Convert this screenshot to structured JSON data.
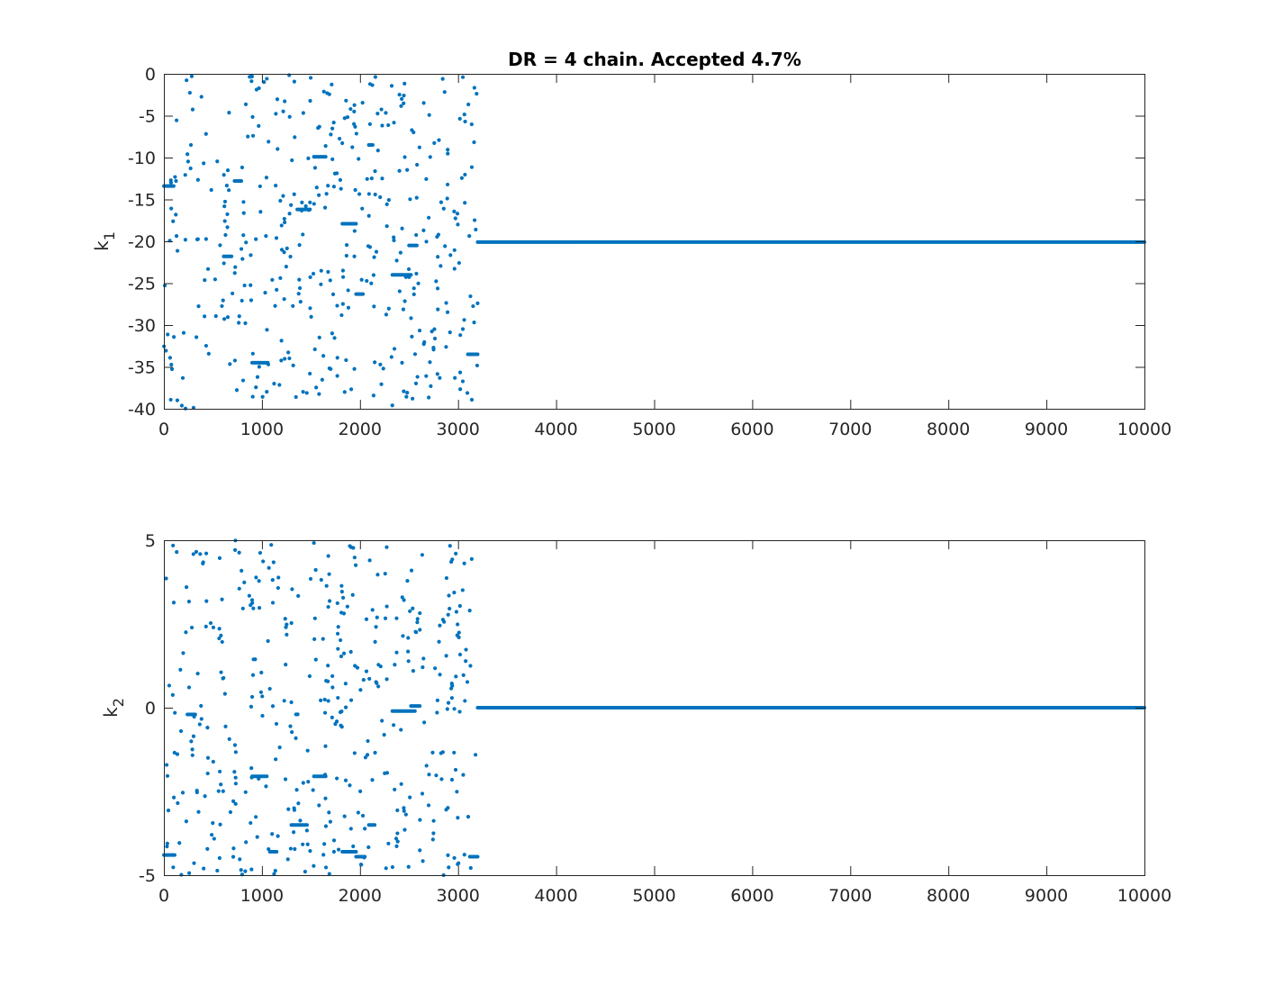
{
  "figure": {
    "title": "DR = 4 chain. Accepted 4.7%"
  },
  "chart_data": [
    {
      "type": "scatter",
      "title": "DR = 4 chain. Accepted 4.7%",
      "ylabel_base": "k",
      "ylabel_sub": "1",
      "xlim": [
        0,
        10000
      ],
      "ylim": [
        -40,
        0
      ],
      "xticks": [
        0,
        1000,
        2000,
        3000,
        4000,
        5000,
        6000,
        7000,
        8000,
        9000,
        10000
      ],
      "yticks": [
        0,
        -5,
        -10,
        -15,
        -20,
        -25,
        -30,
        -35,
        -40
      ],
      "color": "#0072BD",
      "grid": false,
      "accepted_phase_end": 3200,
      "plateaus": [
        {
          "x0": 0,
          "x1": 100,
          "y": -13.4
        },
        {
          "x0": 720,
          "x1": 790,
          "y": -12.8
        },
        {
          "x0": 610,
          "x1": 690,
          "y": -21.8
        },
        {
          "x0": 900,
          "x1": 1060,
          "y": -34.5
        },
        {
          "x0": 1360,
          "x1": 1490,
          "y": -16.2
        },
        {
          "x0": 1530,
          "x1": 1650,
          "y": -9.9
        },
        {
          "x0": 1820,
          "x1": 1960,
          "y": -17.9
        },
        {
          "x0": 1960,
          "x1": 2030,
          "y": -26.3
        },
        {
          "x0": 2330,
          "x1": 2520,
          "y": -24.0
        },
        {
          "x0": 2500,
          "x1": 2580,
          "y": -20.5
        },
        {
          "x0": 2090,
          "x1": 2130,
          "y": -8.5
        },
        {
          "x0": 3100,
          "x1": 3200,
          "y": -33.5
        },
        {
          "x0": 3200,
          "x1": 10000,
          "y": -20.1
        }
      ],
      "scatter_seed": 11,
      "scatter_count": 420
    },
    {
      "type": "scatter",
      "title": "",
      "ylabel_base": "k",
      "ylabel_sub": "2",
      "xlim": [
        0,
        10000
      ],
      "ylim": [
        -5,
        5
      ],
      "xticks": [
        0,
        1000,
        2000,
        3000,
        4000,
        5000,
        6000,
        7000,
        8000,
        9000,
        10000
      ],
      "yticks": [
        5,
        0,
        -5
      ],
      "color": "#0072BD",
      "grid": false,
      "accepted_phase_end": 3200,
      "plateaus": [
        {
          "x0": 0,
          "x1": 110,
          "y": -4.4
        },
        {
          "x0": 240,
          "x1": 320,
          "y": -0.2
        },
        {
          "x0": 900,
          "x1": 1050,
          "y": -2.05
        },
        {
          "x0": 1080,
          "x1": 1150,
          "y": -4.3
        },
        {
          "x0": 1300,
          "x1": 1460,
          "y": -3.5
        },
        {
          "x0": 1530,
          "x1": 1650,
          "y": -2.05
        },
        {
          "x0": 1820,
          "x1": 1960,
          "y": -4.3
        },
        {
          "x0": 1960,
          "x1": 2050,
          "y": -4.45
        },
        {
          "x0": 2090,
          "x1": 2150,
          "y": -3.5
        },
        {
          "x0": 2330,
          "x1": 2560,
          "y": -0.1
        },
        {
          "x0": 2520,
          "x1": 2610,
          "y": 0.05
        },
        {
          "x0": 3120,
          "x1": 3200,
          "y": -4.45
        },
        {
          "x0": 3200,
          "x1": 10000,
          "y": 0.0
        }
      ],
      "scatter_seed": 29,
      "scatter_count": 420
    }
  ]
}
